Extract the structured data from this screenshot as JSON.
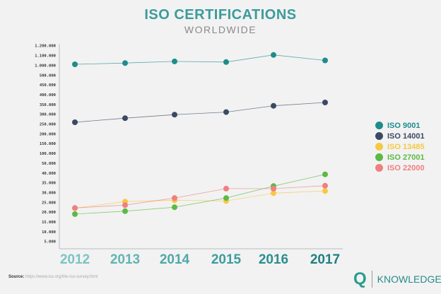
{
  "chart_data": {
    "type": "line",
    "title": "ISO CERTIFICATIONS",
    "subtitle": "WORLDWIDE",
    "categories": [
      "2012",
      "2013",
      "2014",
      "2015",
      "2016",
      "2017"
    ],
    "y_ticks": [
      5000,
      10000,
      15000,
      20000,
      25000,
      30000,
      35000,
      40000,
      50000,
      100000,
      150000,
      200000,
      250000,
      300000,
      350000,
      400000,
      450000,
      500000,
      1000000,
      1100000,
      1200000
    ],
    "y_tick_labels": [
      "5.000",
      "10.000",
      "15.000",
      "20.000",
      "25.000",
      "30.000",
      "35.000",
      "40.000",
      "50.000",
      "100.000",
      "150.000",
      "200.000",
      "250.000",
      "300.000",
      "350.000",
      "400.000",
      "450.000",
      "500.000",
      "1.000.000",
      "1.100.000",
      "1.200.000"
    ],
    "y_scale": "piecewise (non-uniform tick spacing)",
    "grid": false,
    "legend_position": "right",
    "series": [
      {
        "name": "ISO 9001",
        "color": "#1f8c8c",
        "values": [
          1010000,
          1023000,
          1040000,
          1033000,
          1106000,
          1050000
        ]
      },
      {
        "name": "ISO 14001",
        "color": "#3b4a63",
        "values": [
          259000,
          280000,
          298000,
          311000,
          343000,
          360000
        ]
      },
      {
        "name": "ISO 13485",
        "color": "#f7c843",
        "values": [
          22000,
          25400,
          26100,
          25700,
          29700,
          30800
        ]
      },
      {
        "name": "ISO 27001",
        "color": "#5cb944",
        "values": [
          19000,
          20500,
          22500,
          27200,
          33300,
          39300
        ]
      },
      {
        "name": "ISO 22000",
        "color": "#f07f7f",
        "values": [
          22100,
          23600,
          27200,
          32000,
          32000,
          33500
        ]
      }
    ],
    "x_label_colors": [
      "#7cc4c4",
      "#62b4b4",
      "#4fa8a8",
      "#3e9c9c",
      "#2d8e8e",
      "#1f8080"
    ]
  },
  "source": {
    "label": "Source:",
    "url": "https://www.iso.org/the-iso-survey.html"
  },
  "logo": {
    "letter": "Q",
    "text": "KNOWLEDGE"
  }
}
